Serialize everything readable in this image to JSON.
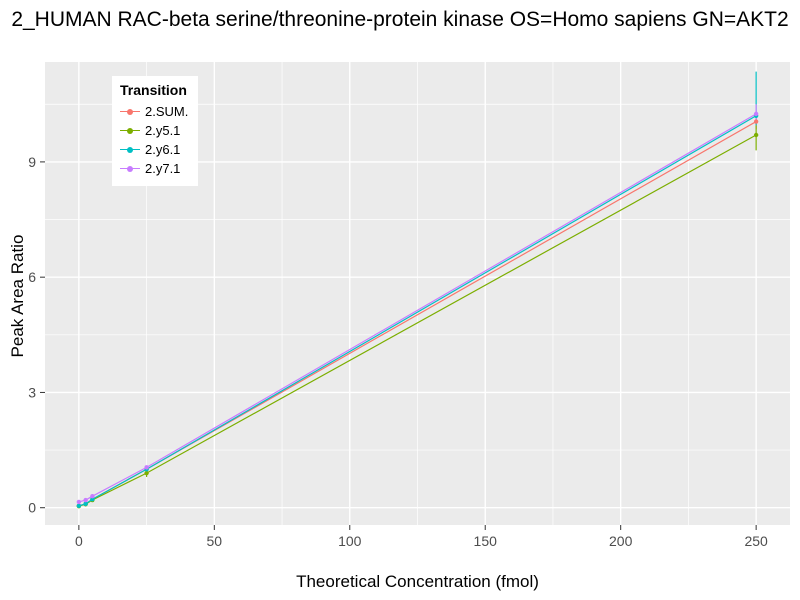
{
  "title": "2_HUMAN RAC-beta serine/threonine-protein kinase OS=Homo sapiens GN=AKT2",
  "chart_data": {
    "type": "line",
    "title": "2_HUMAN RAC-beta serine/threonine-protein kinase OS=Homo sapiens GN=AKT2",
    "xlabel": "Theoretical Concentration (fmol)",
    "ylabel": "Peak Area Ratio",
    "xlim": [
      -12.5,
      262.5
    ],
    "ylim": [
      -0.45,
      11.6
    ],
    "x_ticks": [
      0,
      50,
      100,
      150,
      200,
      250
    ],
    "y_ticks": [
      0,
      3,
      6,
      9
    ],
    "x_minor_ticks": [
      25,
      75,
      125,
      175,
      225
    ],
    "y_minor_ticks": [
      1.5,
      4.5,
      7.5,
      10.5
    ],
    "grid": true,
    "panel_bg": "#EBEBEB",
    "grid_color": "#FFFFFF",
    "legend_title": "Transition",
    "legend_position": "top-left-inside",
    "x": [
      0,
      2.5,
      5,
      25,
      250
    ],
    "series": [
      {
        "name": "2.SUM.",
        "color": "#F8766D",
        "values": [
          0.05,
          0.1,
          0.22,
          1.0,
          10.05
        ]
      },
      {
        "name": "2.y5.1",
        "color": "#7CAE00",
        "values": [
          0.04,
          0.09,
          0.2,
          0.9,
          9.7
        ]
      },
      {
        "name": "2.y6.1",
        "color": "#00BFC4",
        "values": [
          0.05,
          0.1,
          0.22,
          1.0,
          10.2
        ]
      },
      {
        "name": "2.y7.1",
        "color": "#C77CFF",
        "values": [
          0.15,
          0.2,
          0.3,
          1.05,
          10.25
        ]
      }
    ],
    "error_bars": [
      {
        "series": "2.SUM.",
        "x": 250,
        "low": 9.85,
        "high": 10.3
      },
      {
        "series": "2.y5.1",
        "x": 250,
        "low": 9.3,
        "high": 9.95
      },
      {
        "series": "2.y6.1",
        "x": 250,
        "low": 9.95,
        "high": 11.35
      },
      {
        "series": "2.y7.1",
        "x": 250,
        "low": 10.05,
        "high": 10.5
      },
      {
        "series": "2.y5.1",
        "x": 25,
        "low": 0.8,
        "high": 1.0
      }
    ]
  }
}
